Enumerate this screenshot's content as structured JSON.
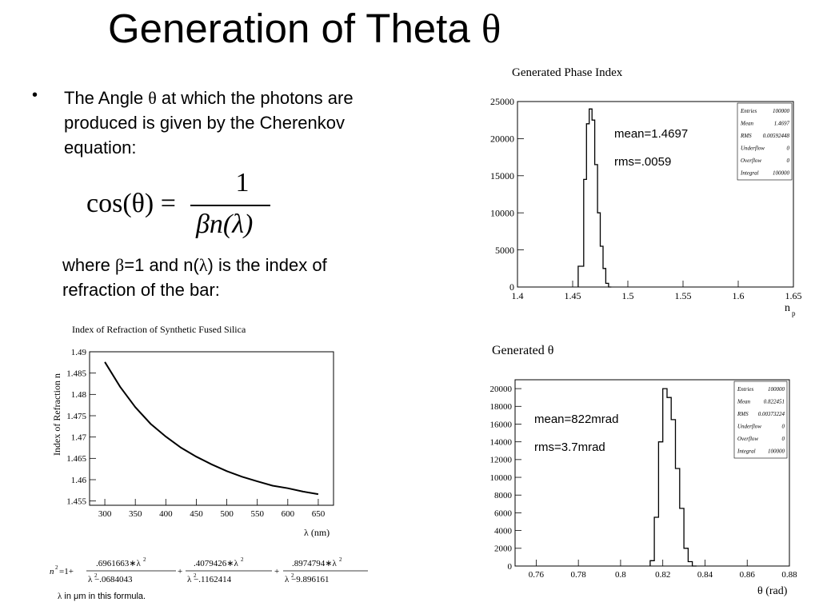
{
  "slide": {
    "title": "Generation of Theta",
    "title_symbol": "θ",
    "bullet": "•",
    "bullet_text_pre": "The Angle ",
    "bullet_symbol": "θ",
    "bullet_text_post": " at which the photons are produced is given by the Cherenkov equation:",
    "formula": {
      "lhs": "cos(θ) =",
      "numerator": "1",
      "denominator": "βn(λ)"
    },
    "where_pre": "where ",
    "where_beta": "β",
    "where_mid": "=1 and  n(",
    "where_lambda": "λ",
    "where_post": ") is the index of refraction of the bar:",
    "sellmeier": {
      "lhs": "n",
      "term1_num": ".6961663∗λ",
      "term1_den": "λ  −.0684043",
      "term2_num": ".4079426∗λ",
      "term2_den": "λ  −.1162414",
      "term3_num": ".8974794∗λ",
      "term3_den": "λ  −9.896161"
    },
    "note_lambda": "λ",
    "note_text": "  in  μm in this formula."
  },
  "colors": {
    "axis": "#000000",
    "curve": "#000000",
    "background": "#ffffff"
  },
  "chart_data": [
    {
      "type": "line",
      "title": "Index of Refraction of Synthetic Fused Silica",
      "xlabel": "λ (nm)",
      "ylabel": "Index of Refraction n",
      "xlim": [
        275,
        675
      ],
      "ylim": [
        1.454,
        1.49
      ],
      "x_ticks": [
        300,
        350,
        400,
        450,
        500,
        550,
        600,
        650
      ],
      "y_ticks": [
        1.455,
        1.46,
        1.465,
        1.47,
        1.475,
        1.48,
        1.485,
        1.49
      ],
      "series": [
        {
          "x": [
            300,
            325,
            350,
            375,
            400,
            425,
            450,
            475,
            500,
            525,
            550,
            575,
            600,
            625,
            650
          ],
          "values": [
            1.4876,
            1.4818,
            1.477,
            1.4731,
            1.4701,
            1.4675,
            1.4654,
            1.4636,
            1.462,
            1.4607,
            1.4596,
            1.4586,
            1.458,
            1.4572,
            1.4566
          ]
        }
      ]
    },
    {
      "type": "bar",
      "title": "Generated  Phase Index",
      "xlabel": "n",
      "xlabel_sub": "p",
      "xlim": [
        1.4,
        1.65
      ],
      "ylim": [
        0,
        25000
      ],
      "x_ticks": [
        1.4,
        1.45,
        1.5,
        1.55,
        1.6,
        1.65
      ],
      "y_ticks": [
        0,
        5000,
        10000,
        15000,
        20000,
        25000
      ],
      "bin_edges": [
        1.455,
        1.46,
        1.4625,
        1.465,
        1.4675,
        1.47,
        1.4725,
        1.475,
        1.4775,
        1.48,
        1.4825,
        1.485
      ],
      "values": [
        2800,
        14500,
        22000,
        24000,
        22500,
        16500,
        10000,
        5500,
        2500,
        500,
        0
      ],
      "annotations": [
        "mean=1.4697",
        "rms=.0059"
      ],
      "stats": [
        {
          "label": "Entries",
          "value": "100000"
        },
        {
          "label": "Mean",
          "value": "1.4697"
        },
        {
          "label": "RMS",
          "value": "0.00592448"
        },
        {
          "label": "Underflow",
          "value": "0"
        },
        {
          "label": "Overflow",
          "value": "0"
        },
        {
          "label": "Integral",
          "value": "100000"
        }
      ]
    },
    {
      "type": "bar",
      "title": "Generated θ",
      "xlabel": "θ (rad)",
      "xlim": [
        0.75,
        0.88
      ],
      "ylim": [
        0,
        21000
      ],
      "x_ticks": [
        0.76,
        0.78,
        0.8,
        0.82,
        0.84,
        0.86,
        0.88
      ],
      "y_ticks": [
        0,
        2000,
        4000,
        6000,
        8000,
        10000,
        12000,
        14000,
        16000,
        18000,
        20000
      ],
      "bin_edges": [
        0.814,
        0.816,
        0.818,
        0.82,
        0.822,
        0.824,
        0.826,
        0.828,
        0.83,
        0.832,
        0.834,
        0.836
      ],
      "values": [
        600,
        5500,
        14000,
        20000,
        19000,
        16500,
        11000,
        6500,
        2000,
        500,
        0
      ],
      "annotations": [
        "mean=822mrad",
        "rms=3.7mrad"
      ],
      "stats": [
        {
          "label": "Entries",
          "value": "100000"
        },
        {
          "label": "Mean",
          "value": "0.822451"
        },
        {
          "label": "RMS",
          "value": "0.00373224"
        },
        {
          "label": "Underflow",
          "value": "0"
        },
        {
          "label": "Overflow",
          "value": "0"
        },
        {
          "label": "Integral",
          "value": "100000"
        }
      ]
    }
  ]
}
